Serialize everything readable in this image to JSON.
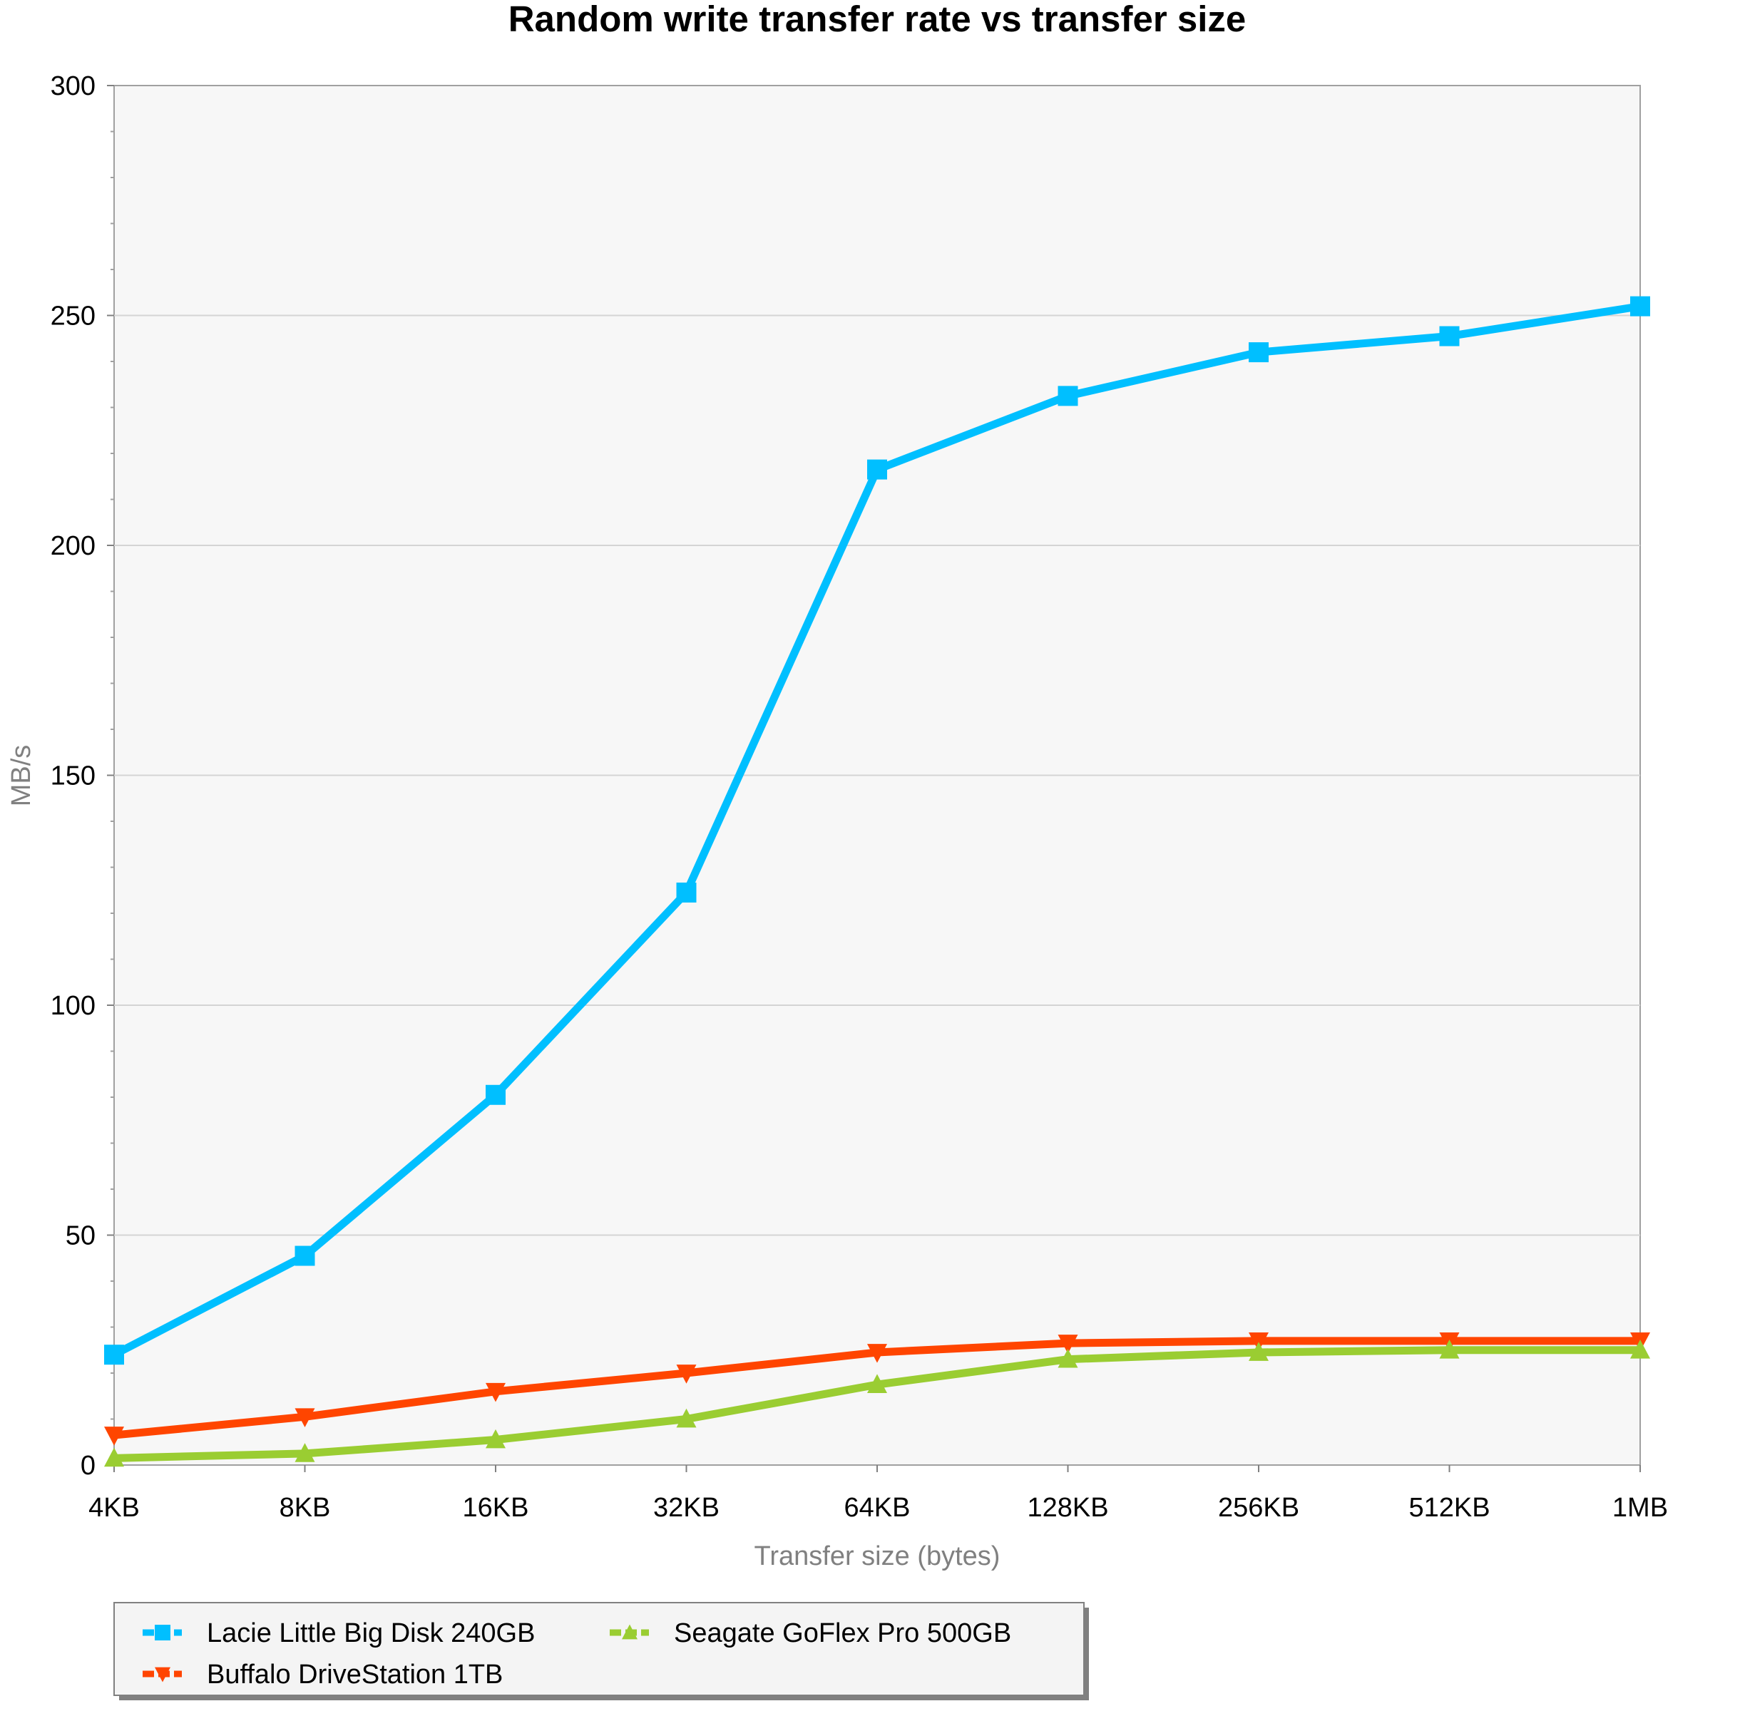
{
  "chart_data": {
    "type": "line",
    "title": "Random write transfer rate vs transfer size",
    "xlabel": "Transfer size (bytes)",
    "ylabel": "MB/s",
    "categories": [
      "4KB",
      "8KB",
      "16KB",
      "32KB",
      "64KB",
      "128KB",
      "256KB",
      "512KB",
      "1MB"
    ],
    "ylim": [
      0,
      300
    ],
    "yticks": [
      0,
      50,
      100,
      150,
      200,
      250,
      300
    ],
    "grid": true,
    "legend_position": "bottom-left",
    "series": [
      {
        "name": "Lacie Little Big Disk 240GB",
        "color": "#00BFFF",
        "marker": "square",
        "values": [
          24,
          45.5,
          80.5,
          124.5,
          216.5,
          232.5,
          242,
          245.5,
          252
        ]
      },
      {
        "name": "Buffalo DriveStation 1TB",
        "color": "#FF4500",
        "marker": "triangle-down",
        "values": [
          6.5,
          10.5,
          16,
          20,
          24.5,
          26.5,
          27,
          27,
          27
        ]
      },
      {
        "name": "Seagate GoFlex Pro 500GB",
        "color": "#9ACD32",
        "marker": "triangle-up",
        "values": [
          1.5,
          2.5,
          5.5,
          10,
          17.5,
          23,
          24.5,
          25,
          25
        ]
      }
    ]
  }
}
